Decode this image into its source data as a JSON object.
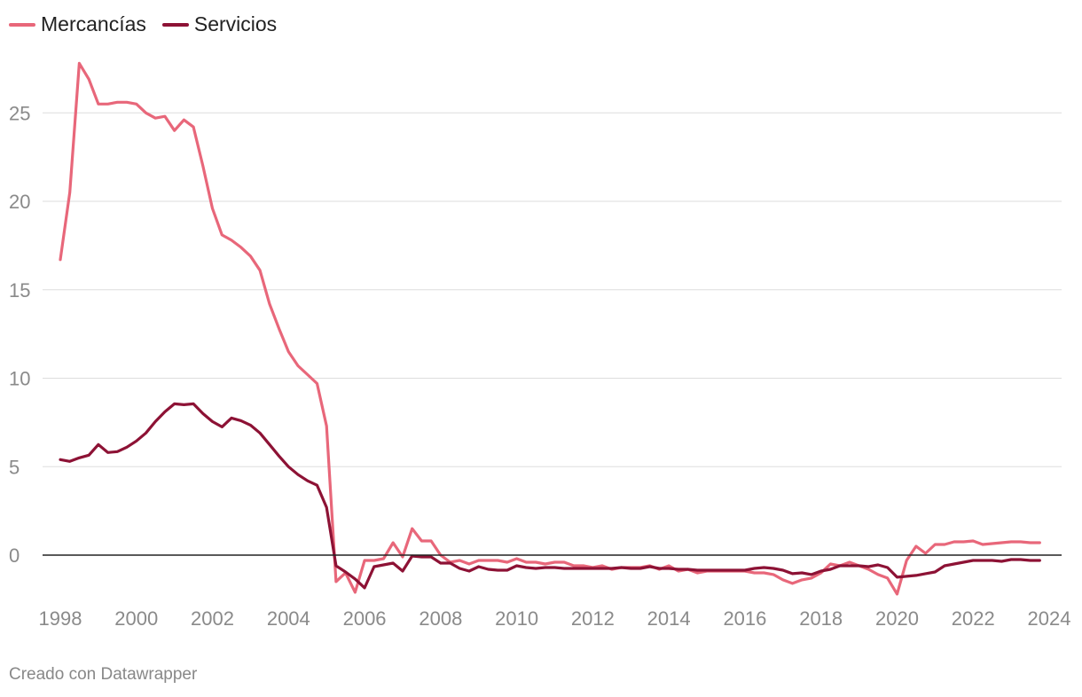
{
  "legend": {
    "items": [
      {
        "label": "Mercancías",
        "color": "#e8677a"
      },
      {
        "label": "Servicios",
        "color": "#8d1235"
      }
    ]
  },
  "footer": {
    "credit": "Creado con Datawrapper"
  },
  "chart_data": {
    "type": "line",
    "title": "",
    "xlabel": "",
    "ylabel": "",
    "xlim": [
      1998,
      2024.2
    ],
    "ylim": [
      -2.2,
      28.5
    ],
    "x_ticks": [
      "1998",
      "2000",
      "2002",
      "2004",
      "2006",
      "2008",
      "2010",
      "2012",
      "2014",
      "2016",
      "2018",
      "2020",
      "2022",
      "2024"
    ],
    "y_ticks": [
      "0",
      "5",
      "10",
      "15",
      "20",
      "25"
    ],
    "grid": true,
    "legend_position": "top-left",
    "series": [
      {
        "name": "Mercancías",
        "color": "#e8677a",
        "points": [
          [
            1998.0,
            16.7
          ],
          [
            1998.25,
            20.5
          ],
          [
            1998.5,
            27.8
          ],
          [
            1998.75,
            26.9
          ],
          [
            1999.0,
            25.5
          ],
          [
            1999.25,
            25.5
          ],
          [
            1999.5,
            25.6
          ],
          [
            1999.75,
            25.6
          ],
          [
            2000.0,
            25.5
          ],
          [
            2000.25,
            25.0
          ],
          [
            2000.5,
            24.7
          ],
          [
            2000.75,
            24.8
          ],
          [
            2001.0,
            24.0
          ],
          [
            2001.25,
            24.6
          ],
          [
            2001.5,
            24.2
          ],
          [
            2001.75,
            22.0
          ],
          [
            2002.0,
            19.6
          ],
          [
            2002.25,
            18.1
          ],
          [
            2002.5,
            17.8
          ],
          [
            2002.75,
            17.4
          ],
          [
            2003.0,
            16.9
          ],
          [
            2003.25,
            16.1
          ],
          [
            2003.5,
            14.2
          ],
          [
            2003.75,
            12.8
          ],
          [
            2004.0,
            11.5
          ],
          [
            2004.25,
            10.7
          ],
          [
            2004.5,
            10.2
          ],
          [
            2004.75,
            9.7
          ],
          [
            2005.0,
            7.3
          ],
          [
            2005.25,
            -1.5
          ],
          [
            2005.5,
            -1.0
          ],
          [
            2005.75,
            -2.1
          ],
          [
            2006.0,
            -0.3
          ],
          [
            2006.25,
            -0.3
          ],
          [
            2006.5,
            -0.2
          ],
          [
            2006.75,
            0.7
          ],
          [
            2007.0,
            -0.1
          ],
          [
            2007.25,
            1.5
          ],
          [
            2007.5,
            0.8
          ],
          [
            2007.75,
            0.8
          ],
          [
            2008.0,
            0.0
          ],
          [
            2008.25,
            -0.4
          ],
          [
            2008.5,
            -0.3
          ],
          [
            2008.75,
            -0.5
          ],
          [
            2009.0,
            -0.3
          ],
          [
            2009.25,
            -0.3
          ],
          [
            2009.5,
            -0.3
          ],
          [
            2009.75,
            -0.4
          ],
          [
            2010.0,
            -0.2
          ],
          [
            2010.25,
            -0.4
          ],
          [
            2010.5,
            -0.4
          ],
          [
            2010.75,
            -0.5
          ],
          [
            2011.0,
            -0.4
          ],
          [
            2011.25,
            -0.4
          ],
          [
            2011.5,
            -0.6
          ],
          [
            2011.75,
            -0.6
          ],
          [
            2012.0,
            -0.7
          ],
          [
            2012.25,
            -0.6
          ],
          [
            2012.5,
            -0.8
          ],
          [
            2012.75,
            -0.7
          ],
          [
            2013.0,
            -0.7
          ],
          [
            2013.25,
            -0.7
          ],
          [
            2013.5,
            -0.6
          ],
          [
            2013.75,
            -0.8
          ],
          [
            2014.0,
            -0.6
          ],
          [
            2014.25,
            -0.9
          ],
          [
            2014.5,
            -0.8
          ],
          [
            2014.75,
            -1.0
          ],
          [
            2015.0,
            -0.9
          ],
          [
            2015.25,
            -0.9
          ],
          [
            2015.5,
            -0.9
          ],
          [
            2015.75,
            -0.9
          ],
          [
            2016.0,
            -0.9
          ],
          [
            2016.25,
            -1.0
          ],
          [
            2016.5,
            -1.0
          ],
          [
            2016.75,
            -1.1
          ],
          [
            2017.0,
            -1.4
          ],
          [
            2017.25,
            -1.6
          ],
          [
            2017.5,
            -1.4
          ],
          [
            2017.75,
            -1.3
          ],
          [
            2018.0,
            -1.0
          ],
          [
            2018.25,
            -0.5
          ],
          [
            2018.5,
            -0.6
          ],
          [
            2018.75,
            -0.4
          ],
          [
            2019.0,
            -0.6
          ],
          [
            2019.25,
            -0.8
          ],
          [
            2019.5,
            -1.1
          ],
          [
            2019.75,
            -1.3
          ],
          [
            2020.0,
            -2.2
          ],
          [
            2020.25,
            -0.3
          ],
          [
            2020.5,
            0.5
          ],
          [
            2020.75,
            0.1
          ],
          [
            2021.0,
            0.6
          ],
          [
            2021.25,
            0.6
          ],
          [
            2021.5,
            0.75
          ],
          [
            2021.75,
            0.75
          ],
          [
            2022.0,
            0.8
          ],
          [
            2022.25,
            0.6
          ],
          [
            2022.5,
            0.65
          ],
          [
            2022.75,
            0.7
          ],
          [
            2023.0,
            0.75
          ],
          [
            2023.25,
            0.75
          ],
          [
            2023.5,
            0.7
          ],
          [
            2023.75,
            0.7
          ]
        ]
      },
      {
        "name": "Servicios",
        "color": "#8d1235",
        "points": [
          [
            1998.0,
            5.4
          ],
          [
            1998.25,
            5.3
          ],
          [
            1998.5,
            5.5
          ],
          [
            1998.75,
            5.65
          ],
          [
            1999.0,
            6.25
          ],
          [
            1999.25,
            5.8
          ],
          [
            1999.5,
            5.85
          ],
          [
            1999.75,
            6.1
          ],
          [
            2000.0,
            6.45
          ],
          [
            2000.25,
            6.9
          ],
          [
            2000.5,
            7.55
          ],
          [
            2000.75,
            8.1
          ],
          [
            2001.0,
            8.55
          ],
          [
            2001.25,
            8.5
          ],
          [
            2001.5,
            8.55
          ],
          [
            2001.75,
            8.0
          ],
          [
            2002.0,
            7.55
          ],
          [
            2002.25,
            7.25
          ],
          [
            2002.5,
            7.75
          ],
          [
            2002.75,
            7.6
          ],
          [
            2003.0,
            7.35
          ],
          [
            2003.25,
            6.9
          ],
          [
            2003.5,
            6.25
          ],
          [
            2003.75,
            5.6
          ],
          [
            2004.0,
            5.0
          ],
          [
            2004.25,
            4.55
          ],
          [
            2004.5,
            4.2
          ],
          [
            2004.75,
            3.95
          ],
          [
            2005.0,
            2.7
          ],
          [
            2005.25,
            -0.6
          ],
          [
            2005.5,
            -0.95
          ],
          [
            2005.75,
            -1.35
          ],
          [
            2006.0,
            -1.85
          ],
          [
            2006.25,
            -0.65
          ],
          [
            2006.5,
            -0.55
          ],
          [
            2006.75,
            -0.45
          ],
          [
            2007.0,
            -0.9
          ],
          [
            2007.25,
            -0.05
          ],
          [
            2007.5,
            -0.1
          ],
          [
            2007.75,
            -0.1
          ],
          [
            2008.0,
            -0.45
          ],
          [
            2008.25,
            -0.45
          ],
          [
            2008.5,
            -0.75
          ],
          [
            2008.75,
            -0.9
          ],
          [
            2009.0,
            -0.65
          ],
          [
            2009.25,
            -0.8
          ],
          [
            2009.5,
            -0.85
          ],
          [
            2009.75,
            -0.85
          ],
          [
            2010.0,
            -0.6
          ],
          [
            2010.25,
            -0.7
          ],
          [
            2010.5,
            -0.75
          ],
          [
            2010.75,
            -0.7
          ],
          [
            2011.0,
            -0.7
          ],
          [
            2011.25,
            -0.75
          ],
          [
            2011.5,
            -0.75
          ],
          [
            2011.75,
            -0.75
          ],
          [
            2012.0,
            -0.75
          ],
          [
            2012.25,
            -0.75
          ],
          [
            2012.5,
            -0.75
          ],
          [
            2012.75,
            -0.7
          ],
          [
            2013.0,
            -0.75
          ],
          [
            2013.25,
            -0.75
          ],
          [
            2013.5,
            -0.65
          ],
          [
            2013.75,
            -0.75
          ],
          [
            2014.0,
            -0.75
          ],
          [
            2014.25,
            -0.8
          ],
          [
            2014.5,
            -0.8
          ],
          [
            2014.75,
            -0.85
          ],
          [
            2015.0,
            -0.85
          ],
          [
            2015.25,
            -0.85
          ],
          [
            2015.5,
            -0.85
          ],
          [
            2015.75,
            -0.85
          ],
          [
            2016.0,
            -0.85
          ],
          [
            2016.25,
            -0.75
          ],
          [
            2016.5,
            -0.7
          ],
          [
            2016.75,
            -0.75
          ],
          [
            2017.0,
            -0.85
          ],
          [
            2017.25,
            -1.05
          ],
          [
            2017.5,
            -1.0
          ],
          [
            2017.75,
            -1.1
          ],
          [
            2018.0,
            -0.9
          ],
          [
            2018.25,
            -0.8
          ],
          [
            2018.5,
            -0.6
          ],
          [
            2018.75,
            -0.6
          ],
          [
            2019.0,
            -0.6
          ],
          [
            2019.25,
            -0.65
          ],
          [
            2019.5,
            -0.55
          ],
          [
            2019.75,
            -0.7
          ],
          [
            2020.0,
            -1.25
          ],
          [
            2020.25,
            -1.2
          ],
          [
            2020.5,
            -1.15
          ],
          [
            2020.75,
            -1.05
          ],
          [
            2021.0,
            -0.95
          ],
          [
            2021.25,
            -0.6
          ],
          [
            2021.5,
            -0.5
          ],
          [
            2021.75,
            -0.4
          ],
          [
            2022.0,
            -0.3
          ],
          [
            2022.25,
            -0.3
          ],
          [
            2022.5,
            -0.3
          ],
          [
            2022.75,
            -0.35
          ],
          [
            2023.0,
            -0.25
          ],
          [
            2023.25,
            -0.25
          ],
          [
            2023.5,
            -0.3
          ],
          [
            2023.75,
            -0.3
          ]
        ]
      }
    ]
  }
}
